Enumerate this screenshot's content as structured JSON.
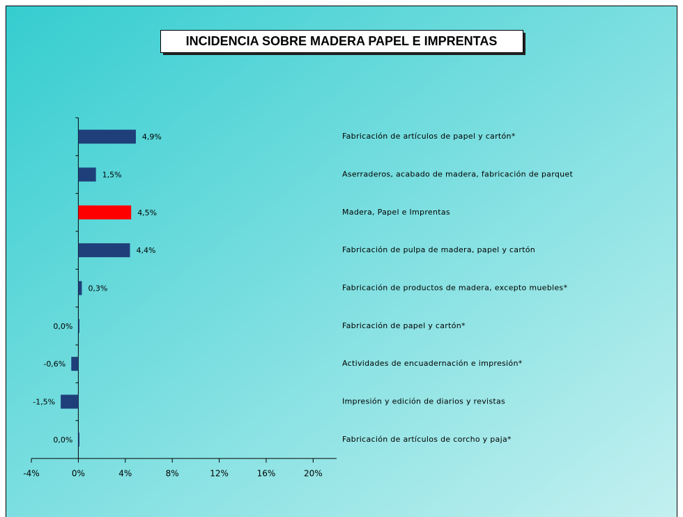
{
  "chart_data": {
    "type": "bar",
    "orientation": "horizontal",
    "title": "INCIDENCIA SOBRE MADERA PAPEL E IMPRENTAS",
    "categories": [
      "Fabricación de artículos de papel y cartón*",
      "Aserraderos, acabado de madera, fabricación de parquet",
      "Madera, Papel e Imprentas",
      "Fabricación de pulpa de madera, papel y cartón",
      "Fabricación de productos de madera, excepto muebles*",
      "Fabricación de papel y cartón*",
      "Actividades de encuadernación e impresión*",
      "Impresión y edición de diarios y revistas",
      "Fabricación de artículos de corcho y paja*"
    ],
    "values": [
      4.9,
      1.5,
      4.5,
      4.4,
      0.3,
      0.0,
      -0.6,
      -1.5,
      0.0
    ],
    "value_labels": [
      "4,9%",
      "1,5%",
      "4,5%",
      "4,4%",
      "0,3%",
      "0,0%",
      "-0,6%",
      "-1,5%",
      "0,0%"
    ],
    "colors": [
      "#1f3f7a",
      "#1f3f7a",
      "#ff0000",
      "#1f3f7a",
      "#1f3f7a",
      "#1f3f7a",
      "#1f3f7a",
      "#1f3f7a",
      "#1f3f7a"
    ],
    "xlim": [
      -4,
      22
    ],
    "xticks": [
      {
        "value": -4,
        "label": "-4%"
      },
      {
        "value": 0,
        "label": "0%"
      },
      {
        "value": 4,
        "label": "4%"
      },
      {
        "value": 8,
        "label": "8%"
      },
      {
        "value": 12,
        "label": "12%"
      },
      {
        "value": 16,
        "label": "16%"
      },
      {
        "value": 20,
        "label": "20%"
      }
    ],
    "grid": false
  }
}
